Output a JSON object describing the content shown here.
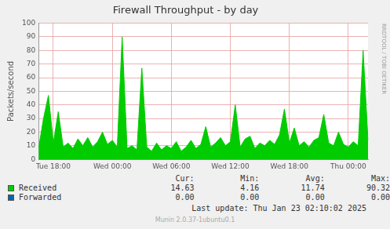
{
  "chart_data": {
    "type": "area",
    "title": "Firewall Throughput - by day",
    "y_label": "Packets/second",
    "side_text": "RRDTOOL / TOBI OETIKER",
    "categories": [
      null,
      null,
      null,
      "Tue 18:00",
      null,
      null,
      null,
      null,
      null,
      null,
      null,
      null,
      null,
      null,
      null,
      "Wed 00:00",
      null,
      null,
      null,
      null,
      null,
      null,
      null,
      null,
      null,
      null,
      null,
      "Wed 06:00",
      null,
      null,
      null,
      null,
      null,
      null,
      null,
      null,
      null,
      null,
      null,
      "Wed 12:00",
      null,
      null,
      null,
      null,
      null,
      null,
      null,
      null,
      null,
      null,
      null,
      "Wed 18:00",
      null,
      null,
      null,
      null,
      null,
      null,
      null,
      null,
      null,
      null,
      null,
      "Thu 00:00",
      null,
      null,
      null,
      null
    ],
    "series": [
      {
        "name": "Received",
        "color": "#00cc00",
        "type": "area",
        "values": [
          8,
          30,
          47,
          12,
          35,
          9,
          12,
          8,
          15,
          10,
          16,
          9,
          13,
          20,
          11,
          14,
          9,
          90,
          8,
          10,
          7,
          67,
          9,
          6,
          12,
          7,
          10,
          8,
          13,
          6,
          9,
          14,
          8,
          11,
          24,
          9,
          12,
          16,
          10,
          13,
          40,
          9,
          15,
          17,
          8,
          12,
          10,
          14,
          11,
          18,
          37,
          12,
          23,
          10,
          13,
          9,
          14,
          16,
          33,
          12,
          10,
          20,
          11,
          9,
          13,
          10,
          80,
          14
        ],
        "stats": [
          "14.63",
          "4.16",
          "11.74",
          "90.32"
        ]
      },
      {
        "name": "Forwarded",
        "color": "#0066b3",
        "type": "area",
        "values": [
          0,
          0,
          0,
          0,
          0,
          0,
          0,
          0,
          0,
          0,
          0,
          0,
          0,
          0,
          0,
          0,
          0,
          0,
          0,
          0,
          0,
          0,
          0,
          0,
          0,
          0,
          0,
          0,
          0,
          0,
          0,
          0,
          0,
          0,
          0,
          0,
          0,
          0,
          0,
          0,
          0,
          0,
          0,
          0,
          0,
          0,
          0,
          0,
          0,
          0,
          0,
          0,
          0,
          0,
          0,
          0,
          0,
          0,
          0,
          0,
          0,
          0,
          0,
          0,
          0,
          0,
          0,
          0
        ],
        "stats": [
          "0.00",
          "0.00",
          "0.00",
          "0.00"
        ]
      }
    ],
    "stats_columns": [
      "Cur:",
      "Min:",
      "Avg:",
      "Max:"
    ],
    "footer": "Last update: Thu Jan 23 02:10:02 2025",
    "version": "Munin 2.0.37-1ubuntu0.1",
    "ylim": [
      0,
      100
    ],
    "yticks": [
      0,
      10,
      20,
      30,
      40,
      50,
      60,
      70,
      80,
      90,
      100
    ],
    "grid": true
  }
}
